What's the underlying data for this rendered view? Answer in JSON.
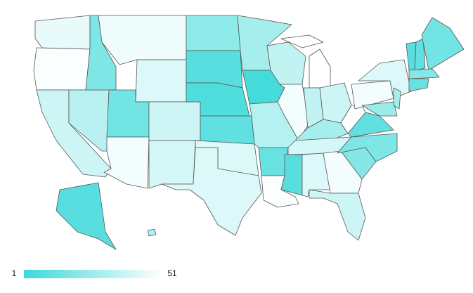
{
  "map": {
    "type": "choropleth",
    "values": [
      45,
      50,
      38,
      33,
      18,
      47,
      42,
      15,
      48,
      38,
      40,
      22,
      8,
      6,
      10,
      42,
      42,
      28,
      3,
      32,
      12,
      50,
      35,
      48,
      51,
      51,
      35,
      38,
      28,
      40,
      8,
      42,
      48,
      38,
      20,
      18,
      10,
      51,
      48,
      42,
      25,
      28,
      8,
      10,
      15,
      20,
      12,
      8,
      30
    ],
    "legend": {
      "range": [
        1,
        51
      ],
      "low_color": "#3dd9d9",
      "high_color": "#ffffff"
    }
  }
}
